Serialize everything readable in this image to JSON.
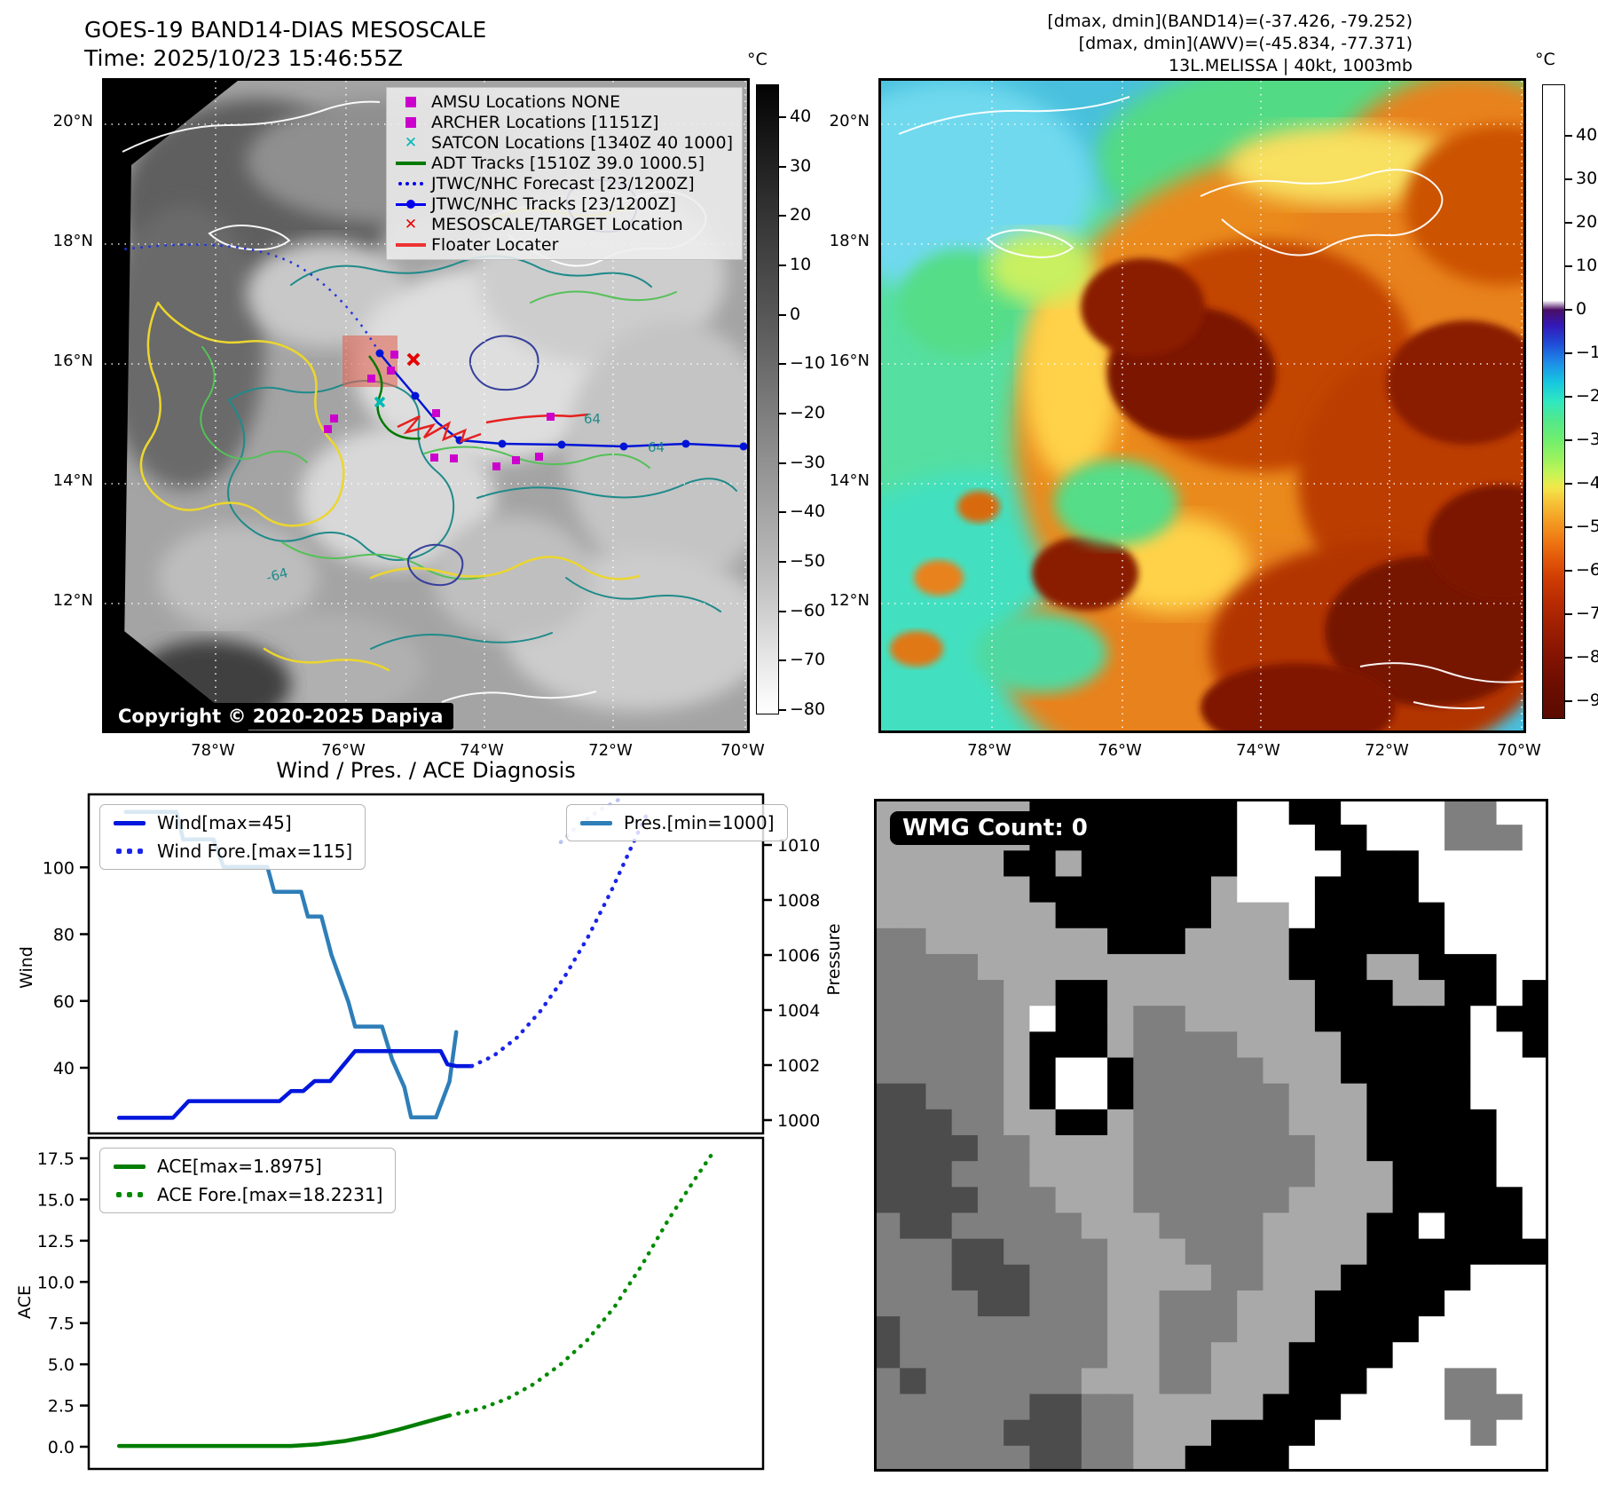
{
  "left_map": {
    "title_line1": "GOES-19 BAND14-DIAS MESOSCALE",
    "title_line2": "Time: 2025/10/23 15:46:55Z",
    "copyright": "Copyright © 2020-2025 Dapiya",
    "lat_ticks": [
      "20°N",
      "18°N",
      "16°N",
      "14°N",
      "12°N"
    ],
    "lon_ticks": [
      "78°W",
      "76°W",
      "74°W",
      "72°W",
      "70°W"
    ],
    "legend": [
      {
        "label": "AMSU Locations NONE",
        "marker": "square",
        "color": "#cc00cc"
      },
      {
        "label": "ARCHER Locations [1151Z]",
        "marker": "square",
        "color": "#cc00cc"
      },
      {
        "label": "SATCON Locations [1340Z 40 1000]",
        "marker": "x",
        "color": "#00b8b8"
      },
      {
        "label": "ADT Tracks [1510Z 39.0 1000.5]",
        "marker": "line",
        "color": "#007a00"
      },
      {
        "label": "JTWC/NHC Forecast [23/1200Z]",
        "marker": "dotted",
        "color": "#0000ee"
      },
      {
        "label": "JTWC/NHC Tracks [23/1200Z]",
        "marker": "line-dot",
        "color": "#0000ee"
      },
      {
        "label": "MESOSCALE/TARGET Location",
        "marker": "x",
        "color": "#e60000"
      },
      {
        "label": "Floater Locater",
        "marker": "line",
        "color": "#ee3333"
      }
    ],
    "contour_labels": [
      "64",
      "64",
      "-64"
    ],
    "colorbar": {
      "unit": "°C",
      "ticks": [
        "40",
        "30",
        "20",
        "10",
        "0",
        "−10",
        "−20",
        "−30",
        "−40",
        "−50",
        "−60",
        "−70",
        "−80"
      ]
    }
  },
  "right_map": {
    "header_lines": [
      "[dmax, dmin](BAND14)=(-37.426, -79.252)",
      "[dmax, dmin](AWV)=(-45.834, -77.371)",
      "13L.MELISSA | 40kt, 1003mb"
    ],
    "lat_ticks": [
      "20°N",
      "18°N",
      "16°N",
      "14°N",
      "12°N"
    ],
    "lon_ticks": [
      "78°W",
      "76°W",
      "74°W",
      "72°W",
      "70°W"
    ],
    "colorbar": {
      "unit": "°C",
      "ticks": [
        "40",
        "30",
        "20",
        "10",
        "0",
        "−10",
        "−20",
        "−30",
        "−40",
        "−50",
        "−60",
        "−70",
        "−80",
        "−90"
      ]
    }
  },
  "charts": {
    "title": "Wind / Pres. / ACE Diagnosis"
  },
  "chart_data": [
    {
      "type": "line",
      "panel": "wind_pressure",
      "ylabel": "Wind",
      "y2label": "Pressure",
      "yticks": [
        "40",
        "60",
        "80",
        "100"
      ],
      "y2ticks": [
        "1000",
        "1002",
        "1004",
        "1006",
        "1008",
        "1010"
      ],
      "ylim": [
        21,
        122
      ],
      "y2lim": [
        999.4,
        1011.9
      ],
      "grid": false,
      "series": [
        {
          "name": "Wind[max=45]",
          "style": "solid",
          "color": "#0016dc",
          "axis": "left",
          "legend_box": "left",
          "points": [
            [
              0.045,
              25
            ],
            [
              0.125,
              25
            ],
            [
              0.148,
              30
            ],
            [
              0.283,
              30
            ],
            [
              0.3,
              33
            ],
            [
              0.318,
              33
            ],
            [
              0.335,
              36
            ],
            [
              0.358,
              36
            ],
            [
              0.395,
              45
            ],
            [
              0.522,
              45
            ],
            [
              0.532,
              41
            ],
            [
              0.545,
              40.5
            ],
            [
              0.568,
              40.5
            ]
          ]
        },
        {
          "name": "Wind Fore.[max=115]",
          "style": "dotted",
          "color": "#1b24e8",
          "axis": "left",
          "legend_box": "left",
          "points": [
            [
              0.568,
              40.5
            ],
            [
              0.6,
              43.5
            ],
            [
              0.635,
              49
            ],
            [
              0.67,
              57
            ],
            [
              0.705,
              67
            ],
            [
              0.74,
              79
            ],
            [
              0.775,
              93
            ],
            [
              0.8,
              104
            ],
            [
              0.818,
              112
            ],
            [
              0.828,
              116
            ]
          ]
        },
        {
          "name": "Pres.[min=1000]",
          "style": "solid",
          "color": "#2e7eb8",
          "axis": "right",
          "legend_box": "right",
          "points": [
            [
              0.055,
              1011.2
            ],
            [
              0.13,
              1011.2
            ],
            [
              0.14,
              1010.2
            ],
            [
              0.185,
              1010.2
            ],
            [
              0.2,
              1009.2
            ],
            [
              0.265,
              1009.2
            ],
            [
              0.275,
              1008.3
            ],
            [
              0.315,
              1008.3
            ],
            [
              0.325,
              1007.4
            ],
            [
              0.345,
              1007.4
            ],
            [
              0.36,
              1006
            ],
            [
              0.385,
              1004.3
            ],
            [
              0.395,
              1003.4
            ],
            [
              0.435,
              1003.4
            ],
            [
              0.45,
              1002.2
            ],
            [
              0.468,
              1001.2
            ],
            [
              0.478,
              1000.1
            ],
            [
              0.515,
              1000.1
            ],
            [
              0.535,
              1001.4
            ],
            [
              0.545,
              1003.2
            ]
          ]
        },
        {
          "name": "Pres. Fore.",
          "style": "dotted",
          "color": "#b9c4ee",
          "axis": "right",
          "legend_box": null,
          "points": [
            [
              0.7,
              1010.1
            ],
            [
              0.73,
              1010.8
            ],
            [
              0.76,
              1011.3
            ],
            [
              0.79,
              1011.7
            ]
          ]
        }
      ]
    },
    {
      "type": "line",
      "panel": "ace",
      "ylabel": "ACE",
      "yticks": [
        "0.0",
        "2.5",
        "5.0",
        "7.5",
        "10.0",
        "12.5",
        "15.0",
        "17.5"
      ],
      "ylim": [
        -1.35,
        18.7
      ],
      "grid": false,
      "series": [
        {
          "name": "ACE[max=1.8975]",
          "style": "solid",
          "color": "#007d00",
          "axis": "left",
          "legend_box": "left",
          "points": [
            [
              0.045,
              0.05
            ],
            [
              0.3,
              0.05
            ],
            [
              0.34,
              0.15
            ],
            [
              0.38,
              0.35
            ],
            [
              0.42,
              0.65
            ],
            [
              0.46,
              1.05
            ],
            [
              0.5,
              1.5
            ],
            [
              0.535,
              1.9
            ]
          ]
        },
        {
          "name": "ACE Fore.[max=18.2231]",
          "style": "dotted",
          "color": "#008a00",
          "axis": "left",
          "legend_box": "left",
          "points": [
            [
              0.535,
              1.9
            ],
            [
              0.58,
              2.3
            ],
            [
              0.62,
              2.9
            ],
            [
              0.66,
              3.8
            ],
            [
              0.7,
              5.0
            ],
            [
              0.74,
              6.5
            ],
            [
              0.78,
              8.5
            ],
            [
              0.82,
              11.0
            ],
            [
              0.86,
              13.8
            ],
            [
              0.9,
              16.3
            ],
            [
              0.925,
              17.8
            ]
          ]
        }
      ]
    }
  ],
  "wmg": {
    "count_label": "WMG Count: 0",
    "palette": {
      "L": "#a9a9a9",
      "M": "#7f7f7f",
      "D": "#4c4c4c",
      "B": "#000000",
      "W": "#ffffff"
    },
    "grid": [
      "LLLLLLBBBBBBBBWWBBWWWWMMWW",
      "LLLLLLBBBBBBBBWWWBBWWWMMMW",
      "LLLLLBBLBBBBBBWWWWBBBWWWWW",
      "LLLLLLBBBBBBBLWWWBBBBWWWWW",
      "LLLLLLLBBBBBBLLLWBBBBBWWWW",
      "MMLLLLLLLBBBLLLLBBBBBBWWWW",
      "MMMMLLLLLLLLLLLLBBBLLBBBWW",
      "MMMMMLLBBLLLLLLLLBBBLLBBWB",
      "MMMMMLWBBLMMLLLLLBBBBBBWBB",
      "MMMMMLBBBLMMMMLLLLBBBBBWWB",
      "MMMMMLBWWBMMMMMLLLBBBBBWWW",
      "DDMMMLBWWBMMMMMMLLLBBBBWWW",
      "DDDMMLLBBLMMMMMMLLLBBBBBWW",
      "DDDDMMLLLLMMMMMMMLLBBBBBWW",
      "DDDMMMLLLLMMMMMMMLLLBBBBWW",
      "DDDDMMMLLLMMMMMMLLLLBBBBBW",
      "MDDMMMMMLLLMMMMLLLLBBWBBBW",
      "MMMDDMMMMLLLMMMLLLLBBBBBBB",
      "MMMDDDMMMLLLLMMLLLBBBBBWWW",
      "MMMMDDMMMLLMMMLLLBBBBBWWWW",
      "DMMMMMMMMLLMMMLLLBBBBWWWWW",
      "DMMMMMMMMLLMMLLLBBBBWWWWWW",
      "MDMMMMMMLLLMMLLLBBBWWWMMWW",
      "MMMMMMDDMMLLLLLBBBWWWWMMMW",
      "MMMMMDDDMMLLLBBBBWWWWWWMWW",
      "MMMMMMDDMMLLBBBBWWWWWWWWWW"
    ]
  },
  "colors": {
    "wind_line": "#0016dc",
    "wind_forecast": "#1b24e8",
    "pressure_line": "#2e7eb8",
    "pressure_forecast": "#b9c4ee",
    "ace_line": "#007d00",
    "ace_forecast": "#008a00",
    "target_box": "#e06555",
    "contour_yellow": "#ecd62e",
    "contour_green": "#55c058",
    "contour_teal": "#1f8a8a",
    "contour_navy": "#36409c"
  }
}
